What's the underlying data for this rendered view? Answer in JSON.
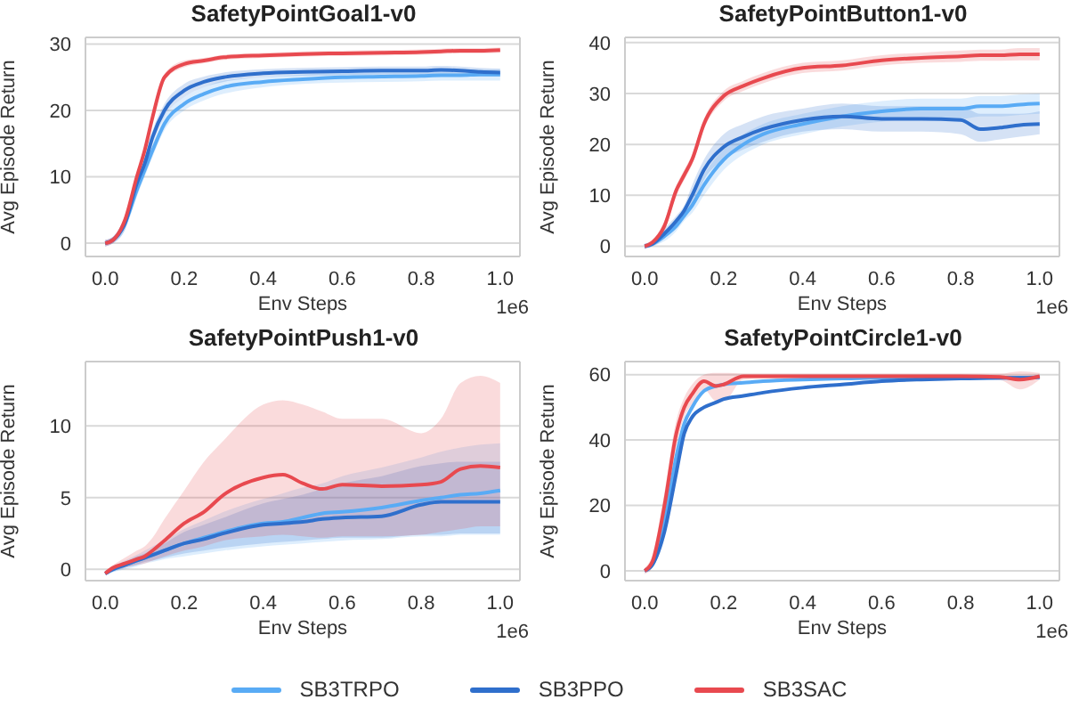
{
  "chart_data": [
    {
      "type": "line",
      "title": "SafetyPointGoal1-v0",
      "xlabel": "Env Steps",
      "ylabel": "Avg Episode Return",
      "annotations": [
        "1e6"
      ],
      "grid": "y",
      "legend": "bottom",
      "x": [
        0,
        0.02,
        0.05,
        0.08,
        0.1,
        0.12,
        0.15,
        0.2,
        0.25,
        0.3,
        0.4,
        0.5,
        0.6,
        0.7,
        0.8,
        0.85,
        0.9,
        0.95,
        1.0
      ],
      "xlim": [
        -0.05,
        1.05
      ],
      "xticks": [
        {
          "value": 0,
          "label": "0.0"
        },
        {
          "value": 0.2,
          "label": "0.2"
        },
        {
          "value": 0.4,
          "label": "0.4"
        },
        {
          "value": 0.6,
          "label": "0.6"
        },
        {
          "value": 0.8,
          "label": "0.8"
        },
        {
          "value": 1,
          "label": "1.0"
        }
      ],
      "ylim": [
        -2,
        31
      ],
      "yticks": [
        0,
        10,
        20,
        30
      ],
      "series": [
        {
          "name": "SB3TRPO",
          "color": "#59abf5",
          "values": [
            0,
            0.5,
            3,
            8,
            11,
            14,
            18,
            21,
            22.5,
            23.5,
            24.3,
            24.7,
            25,
            25.1,
            25.2,
            25.3,
            25.3,
            25.4,
            25.4
          ],
          "lower": [
            -0.5,
            0,
            2,
            7,
            10,
            13,
            17,
            20,
            21.5,
            22.5,
            23.5,
            24,
            24.2,
            24.3,
            24.4,
            24.5,
            24.5,
            24.5,
            24.5
          ],
          "upper": [
            0.5,
            1,
            4,
            9,
            12,
            15,
            19,
            22,
            23.5,
            24.5,
            25,
            25.4,
            25.8,
            25.9,
            26,
            26.1,
            26.1,
            26.2,
            26.2
          ]
        },
        {
          "name": "SB3PPO",
          "color": "#2f6fcc",
          "values": [
            0,
            0.5,
            3,
            9,
            12,
            16,
            20,
            23,
            24.3,
            25,
            25.6,
            25.8,
            25.9,
            26,
            26,
            26.1,
            26,
            25.8,
            25.7
          ],
          "lower": [
            -0.5,
            0,
            2,
            8,
            11,
            15,
            19,
            22,
            23.5,
            24.3,
            25,
            25.2,
            25.3,
            25.4,
            25.4,
            25.5,
            25.4,
            25.2,
            25.1
          ],
          "upper": [
            0.5,
            1,
            4,
            10,
            13,
            17,
            21,
            24,
            25.1,
            25.7,
            26.2,
            26.4,
            26.5,
            26.6,
            26.6,
            26.7,
            26.6,
            26.4,
            26.3
          ]
        },
        {
          "name": "SB3SAC",
          "color": "#e8494f",
          "values": [
            0,
            0.5,
            3.5,
            10,
            14,
            19,
            25,
            27,
            27.5,
            28,
            28.3,
            28.5,
            28.6,
            28.7,
            28.8,
            28.9,
            29,
            29,
            29.1
          ],
          "lower": [
            -0.5,
            0,
            3,
            9.5,
            13.5,
            18.5,
            24.5,
            26.5,
            27.1,
            27.6,
            27.9,
            28.1,
            28.2,
            28.3,
            28.4,
            28.5,
            28.6,
            28.6,
            28.7
          ],
          "upper": [
            0.5,
            1,
            4,
            10.5,
            14.5,
            19.5,
            25.5,
            27.5,
            27.9,
            28.4,
            28.7,
            28.9,
            29,
            29.1,
            29.2,
            29.3,
            29.4,
            29.4,
            29.5
          ]
        }
      ]
    },
    {
      "type": "line",
      "title": "SafetyPointButton1-v0",
      "xlabel": "Env Steps",
      "ylabel": "Avg Episode Return",
      "annotations": [
        "1e6"
      ],
      "grid": "y",
      "legend": "bottom",
      "x": [
        0,
        0.02,
        0.05,
        0.08,
        0.1,
        0.12,
        0.15,
        0.2,
        0.25,
        0.3,
        0.4,
        0.5,
        0.6,
        0.7,
        0.8,
        0.85,
        0.9,
        0.95,
        1.0
      ],
      "xlim": [
        -0.05,
        1.05
      ],
      "xticks": [
        {
          "value": 0,
          "label": "0.0"
        },
        {
          "value": 0.2,
          "label": "0.2"
        },
        {
          "value": 0.4,
          "label": "0.4"
        },
        {
          "value": 0.6,
          "label": "0.6"
        },
        {
          "value": 0.8,
          "label": "0.8"
        },
        {
          "value": 1,
          "label": "1.0"
        }
      ],
      "ylim": [
        -2,
        41
      ],
      "yticks": [
        0,
        10,
        20,
        30,
        40
      ],
      "series": [
        {
          "name": "SB3TRPO",
          "color": "#59abf5",
          "values": [
            0,
            0.5,
            2,
            4,
            6,
            8,
            12,
            17,
            20,
            22,
            24,
            25.5,
            26.5,
            27,
            27,
            27.5,
            27.5,
            27.8,
            28
          ],
          "lower": [
            -0.5,
            0,
            1,
            3,
            5,
            6.5,
            10,
            15,
            18,
            20,
            22,
            23.5,
            24.5,
            25,
            25,
            25.5,
            25.5,
            25.8,
            26
          ],
          "upper": [
            0.5,
            1,
            3,
            5,
            7,
            9.5,
            14,
            19,
            22,
            24,
            26,
            27.5,
            28.5,
            29,
            29,
            29.5,
            29.5,
            29.8,
            30
          ]
        },
        {
          "name": "SB3PPO",
          "color": "#2f6fcc",
          "values": [
            0,
            0.5,
            2.5,
            5,
            7,
            10,
            15,
            19.5,
            21.5,
            23,
            24.8,
            25.5,
            25,
            25,
            24.8,
            23,
            23.3,
            23.8,
            24
          ],
          "lower": [
            -0.5,
            0,
            1.5,
            4,
            6,
            8,
            13,
            17,
            19,
            20.5,
            22.5,
            23,
            22.5,
            22.5,
            22,
            20.5,
            21,
            21.5,
            22
          ],
          "upper": [
            0.5,
            1,
            3.5,
            6,
            8,
            12,
            17,
            22,
            24,
            25.5,
            27,
            28,
            27.5,
            27.5,
            27.5,
            26,
            26,
            26,
            26.5
          ]
        },
        {
          "name": "SB3SAC",
          "color": "#e8494f",
          "values": [
            0,
            0.8,
            4,
            11,
            14,
            17,
            24,
            29.5,
            31.5,
            33,
            35,
            35.5,
            36.5,
            37,
            37.3,
            37.5,
            37.5,
            37.7,
            37.7
          ],
          "lower": [
            -0.5,
            0.3,
            3,
            10,
            13,
            16,
            23,
            28.5,
            30.5,
            32,
            34,
            34.5,
            35.5,
            36,
            36.2,
            36.4,
            36.4,
            36.5,
            36.5
          ],
          "upper": [
            0.5,
            1.3,
            5,
            12,
            15,
            18,
            25,
            30.5,
            32.5,
            34,
            36,
            36.5,
            37.5,
            38,
            38.4,
            38.6,
            38.6,
            38.9,
            38.9
          ]
        }
      ]
    },
    {
      "type": "line",
      "title": "SafetyPointPush1-v0",
      "xlabel": "Env Steps",
      "ylabel": "Avg Episode Return",
      "annotations": [
        "1e6"
      ],
      "grid": "y",
      "legend": "bottom",
      "x": [
        0,
        0.02,
        0.05,
        0.08,
        0.1,
        0.12,
        0.15,
        0.2,
        0.25,
        0.3,
        0.4,
        0.45,
        0.5,
        0.55,
        0.6,
        0.7,
        0.8,
        0.85,
        0.9,
        0.95,
        1.0
      ],
      "xlim": [
        -0.05,
        1.05
      ],
      "xticks": [
        {
          "value": 0,
          "label": "0.0"
        },
        {
          "value": 0.2,
          "label": "0.2"
        },
        {
          "value": 0.4,
          "label": "0.4"
        },
        {
          "value": 0.6,
          "label": "0.6"
        },
        {
          "value": 0.8,
          "label": "0.8"
        },
        {
          "value": 1,
          "label": "1.0"
        }
      ],
      "ylim": [
        -0.8,
        14.5
      ],
      "yticks": [
        0,
        5,
        10
      ],
      "series": [
        {
          "name": "SB3TRPO",
          "color": "#59abf5",
          "values": [
            -0.3,
            0,
            0.3,
            0.6,
            0.8,
            1,
            1.3,
            1.8,
            2.2,
            2.6,
            3.2,
            3.3,
            3.6,
            3.9,
            4,
            4.3,
            4.8,
            5,
            5.2,
            5.3,
            5.5
          ],
          "lower": [
            -0.4,
            -0.2,
            0,
            0.2,
            0.4,
            0.5,
            0.7,
            0.9,
            1.1,
            1.3,
            1.6,
            1.7,
            1.8,
            1.9,
            2,
            2.1,
            2.3,
            2.3,
            2.4,
            2.4,
            2.4
          ],
          "upper": [
            -0.2,
            0.2,
            0.6,
            1,
            1.3,
            1.6,
            2,
            2.8,
            3.4,
            4,
            4.9,
            5.3,
            5.7,
            6,
            6.5,
            7.1,
            7.8,
            8.2,
            8.5,
            8.7,
            8.8
          ]
        },
        {
          "name": "SB3PPO",
          "color": "#2f6fcc",
          "values": [
            -0.3,
            0,
            0.3,
            0.6,
            0.8,
            1,
            1.3,
            1.8,
            2.1,
            2.5,
            3.1,
            3.2,
            3.3,
            3.5,
            3.6,
            3.7,
            4.5,
            4.7,
            4.7,
            4.7,
            4.7
          ],
          "lower": [
            -0.4,
            -0.2,
            0.1,
            0.3,
            0.5,
            0.6,
            0.8,
            1.1,
            1.3,
            1.5,
            1.8,
            1.9,
            2,
            2.1,
            2.2,
            2.2,
            2.4,
            2.4,
            2.5,
            2.5,
            2.5
          ],
          "upper": [
            -0.2,
            0.2,
            0.5,
            0.9,
            1.1,
            1.4,
            1.8,
            2.6,
            3.1,
            3.6,
            4.6,
            4.9,
            5.2,
            5.6,
            6,
            6.5,
            7.2,
            7.4,
            7.5,
            7.5,
            7.5
          ]
        },
        {
          "name": "SB3SAC",
          "color": "#e8494f",
          "values": [
            -0.3,
            0.1,
            0.4,
            0.7,
            0.9,
            1.3,
            2,
            3.2,
            4,
            5.2,
            6.4,
            6.6,
            6,
            5.6,
            5.9,
            5.8,
            5.9,
            6.1,
            7,
            7.2,
            7.1
          ],
          "lower": [
            -0.4,
            -0.1,
            0.1,
            0.3,
            0.4,
            0.6,
            0.9,
            1.3,
            1.6,
            2,
            2.3,
            2.4,
            2.3,
            2.2,
            2.3,
            2.3,
            2.4,
            2.6,
            2.8,
            3,
            3
          ],
          "upper": [
            -0.1,
            0.3,
            0.8,
            1.3,
            1.6,
            2.2,
            3.5,
            5.5,
            7.5,
            9,
            11.5,
            11.8,
            11.5,
            11,
            10.5,
            10.5,
            9.5,
            10.5,
            13,
            13.5,
            13
          ]
        }
      ]
    },
    {
      "type": "line",
      "title": "SafetyPointCircle1-v0",
      "xlabel": "Env Steps",
      "ylabel": "Avg Episode Return",
      "annotations": [
        "1e6"
      ],
      "grid": "y",
      "legend": "bottom",
      "x": [
        0,
        0.02,
        0.05,
        0.08,
        0.1,
        0.12,
        0.15,
        0.18,
        0.2,
        0.25,
        0.3,
        0.4,
        0.5,
        0.6,
        0.7,
        0.8,
        0.9,
        0.95,
        1.0
      ],
      "xlim": [
        -0.05,
        1.05
      ],
      "xticks": [
        {
          "value": 0,
          "label": "0.0"
        },
        {
          "value": 0.2,
          "label": "0.2"
        },
        {
          "value": 0.4,
          "label": "0.4"
        },
        {
          "value": 0.6,
          "label": "0.6"
        },
        {
          "value": 0.8,
          "label": "0.8"
        },
        {
          "value": 1,
          "label": "1.0"
        }
      ],
      "ylim": [
        -3,
        64
      ],
      "yticks": [
        0,
        20,
        40,
        60
      ],
      "series": [
        {
          "name": "SB3TRPO",
          "color": "#59abf5",
          "values": [
            0,
            2,
            15,
            35,
            45,
            50,
            55,
            56.5,
            57,
            57.5,
            58,
            58.5,
            58.8,
            59,
            59,
            59,
            59,
            59,
            59.3
          ]
        },
        {
          "name": "SB3PPO",
          "color": "#2f6fcc",
          "values": [
            0,
            2,
            12,
            30,
            42,
            47,
            50,
            51.5,
            52.5,
            53.5,
            54.5,
            56,
            57,
            58,
            58.5,
            58.8,
            59,
            59,
            59.2
          ]
        },
        {
          "name": "SB3SAC",
          "color": "#e8494f",
          "values": [
            0,
            3,
            20,
            42,
            50,
            54,
            58,
            56.5,
            57,
            59.5,
            59.5,
            59.5,
            59.5,
            59.5,
            59.5,
            59.5,
            59.3,
            58.5,
            59.5
          ],
          "lower": [
            -1,
            1,
            16,
            38,
            47,
            51,
            55.5,
            52,
            52,
            58.5,
            58.8,
            58.8,
            58.8,
            58.8,
            58.8,
            58.8,
            58.3,
            55.5,
            58.5
          ],
          "upper": [
            1,
            5,
            24,
            46,
            53,
            57,
            60,
            60.5,
            60.5,
            60.3,
            60.3,
            60.3,
            60.3,
            60.3,
            60.3,
            60.3,
            60.3,
            61,
            60.5
          ]
        }
      ]
    }
  ]
}
